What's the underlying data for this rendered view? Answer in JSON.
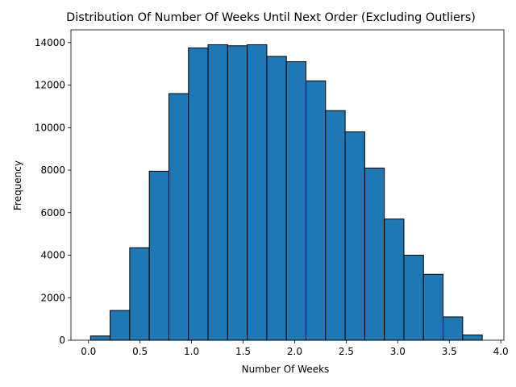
{
  "chart_data": {
    "type": "bar",
    "title": "Distribution Of Number Of Weeks Until Next Order (Excluding Outliers)",
    "xlabel": "Number Of Weeks",
    "ylabel": "Frequency",
    "xlim": [
      -0.17,
      4.03
    ],
    "ylim": [
      0,
      14600
    ],
    "grid": false,
    "bar_color": "#1f77b4",
    "edge_color": "#000000",
    "bin_edges": [
      0.02,
      0.21,
      0.4,
      0.59,
      0.78,
      0.97,
      1.16,
      1.35,
      1.54,
      1.73,
      1.92,
      2.11,
      2.3,
      2.49,
      2.68,
      2.87,
      3.06,
      3.25,
      3.44,
      3.63,
      3.82
    ],
    "values": [
      200,
      1400,
      4350,
      7950,
      11600,
      13750,
      13900,
      13850,
      13900,
      13350,
      13100,
      12200,
      10800,
      9800,
      8100,
      5700,
      4000,
      3100,
      1100,
      250
    ],
    "xticks": [
      0.0,
      0.5,
      1.0,
      1.5,
      2.0,
      2.5,
      3.0,
      3.5,
      4.0
    ],
    "xtick_labels": [
      "0.0",
      "0.5",
      "1.0",
      "1.5",
      "2.0",
      "2.5",
      "3.0",
      "3.5",
      "4.0"
    ],
    "yticks": [
      0,
      2000,
      4000,
      6000,
      8000,
      10000,
      12000,
      14000
    ],
    "ytick_labels": [
      "0",
      "2000",
      "4000",
      "6000",
      "8000",
      "10000",
      "12000",
      "14000"
    ]
  }
}
